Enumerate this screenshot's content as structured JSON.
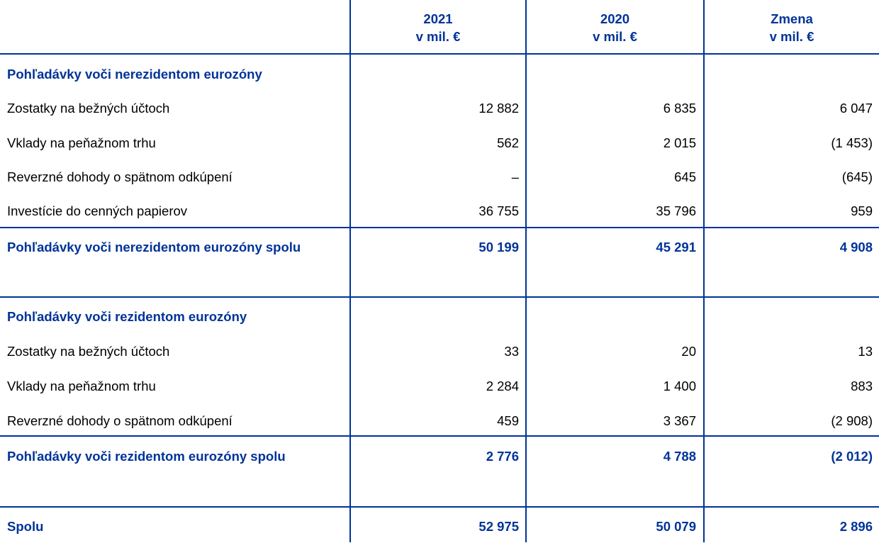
{
  "colors": {
    "accent": "#003399"
  },
  "header": {
    "columns": [
      {
        "year": "2021",
        "unit": "v mil. €"
      },
      {
        "year": "2020",
        "unit": "v mil. €"
      },
      {
        "year": "Zmena",
        "unit": "v mil. €"
      }
    ]
  },
  "rows": [
    {
      "label": "Pohľadávky voči nerezidentom eurozóny",
      "values": [
        "",
        "",
        ""
      ],
      "bold": true
    },
    {
      "label": "Zostatky na bežných účtoch",
      "values": [
        "12 882",
        "6 835",
        "6 047"
      ]
    },
    {
      "label": "Vklady na peňažnom trhu",
      "values": [
        "562",
        "2 015",
        "(1 453)"
      ]
    },
    {
      "label": "Reverzné dohody o spätnom odkúpení",
      "values": [
        "–",
        "645",
        "(645)"
      ]
    },
    {
      "label": "Investície do cenných papierov",
      "values": [
        "36 755",
        "35 796",
        "959"
      ]
    },
    {
      "label": "Pohľadávky voči nerezidentom eurozóny spolu",
      "values": [
        "50 199",
        "45 291",
        "4 908"
      ],
      "bold": true
    },
    {
      "label": "Pohľadávky voči rezidentom eurozóny",
      "values": [
        "",
        "",
        ""
      ],
      "bold": true
    },
    {
      "label": "Zostatky na bežných účtoch",
      "values": [
        "33",
        "20",
        "13"
      ]
    },
    {
      "label": "Vklady na peňažnom trhu",
      "values": [
        "2 284",
        "1 400",
        "883"
      ]
    },
    {
      "label": "Reverzné dohody o spätnom odkúpení",
      "values": [
        "459",
        "3 367",
        "(2 908)"
      ]
    },
    {
      "label": "Pohľadávky voči rezidentom eurozóny spolu",
      "values": [
        "2 776",
        "4 788",
        "(2 012)"
      ],
      "bold": true
    },
    {
      "label": "Spolu",
      "values": [
        "52 975",
        "50 079",
        "2 896"
      ],
      "bold": true
    }
  ]
}
